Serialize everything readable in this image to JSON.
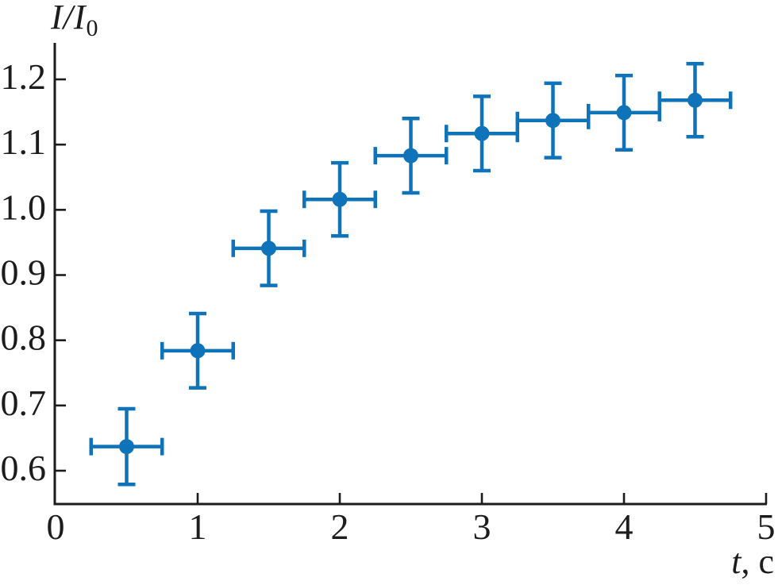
{
  "chart_data": {
    "type": "scatter",
    "title": "",
    "ylabel": "I/I0",
    "ylabel_main": "I/I",
    "ylabel_sub": "0",
    "xlabel": "t, с",
    "xlabel_main": "t",
    "xlabel_rest": ", с",
    "x": [
      0.5,
      1.0,
      1.5,
      2.0,
      2.5,
      3.0,
      3.5,
      4.0,
      4.5
    ],
    "y": [
      0.637,
      0.784,
      0.941,
      1.016,
      1.083,
      1.117,
      1.137,
      1.149,
      1.168
    ],
    "x_err": [
      0.25,
      0.25,
      0.25,
      0.25,
      0.25,
      0.25,
      0.25,
      0.25,
      0.25
    ],
    "y_err": [
      0.058,
      0.057,
      0.057,
      0.056,
      0.057,
      0.057,
      0.057,
      0.057,
      0.056
    ],
    "x_ticks": [
      0,
      1,
      2,
      3,
      4,
      5
    ],
    "x_tick_labels": [
      "0",
      "1",
      "2",
      "3",
      "4",
      "5"
    ],
    "y_ticks": [
      0.6,
      0.7,
      0.8,
      0.9,
      1.0,
      1.1,
      1.2
    ],
    "y_tick_labels": [
      "0.6",
      "0.7",
      "0.8",
      "0.9",
      "1.0",
      "1.1",
      "1.2"
    ],
    "xlim": [
      0,
      5
    ],
    "ylim": [
      0.55,
      1.25
    ],
    "grid": false,
    "legend": null,
    "marker_color": "#0e73b9",
    "axis_color": "#1c1c1c"
  }
}
